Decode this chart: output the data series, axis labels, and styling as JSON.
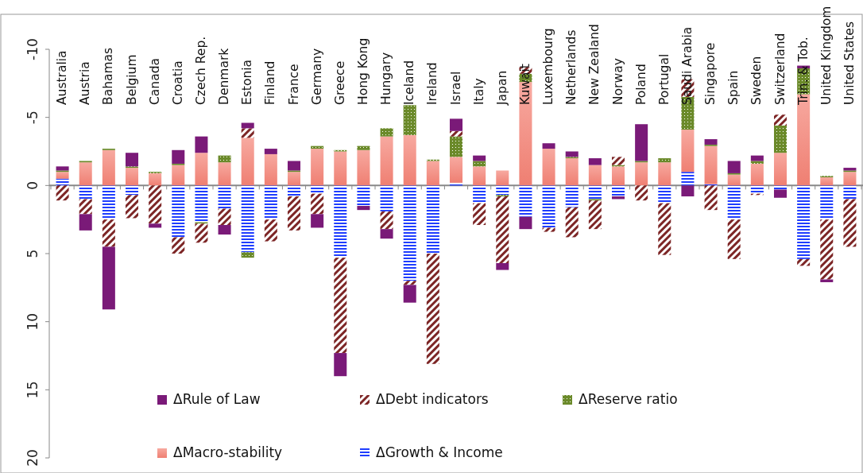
{
  "chart_data": {
    "type": "bar",
    "stacked": true,
    "categories": [
      "Australia",
      "Austria",
      "Bahamas",
      "Belgium",
      "Canada",
      "Croatia",
      "Czech Rep.",
      "Denmark",
      "Estonia",
      "Finland",
      "France",
      "Germany",
      "Greece",
      "Hong Kong",
      "Hungary",
      "Iceland",
      "Ireland",
      "Israel",
      "Italy",
      "Japan",
      "Kuwait",
      "Luxembourg",
      "Netherlands",
      "New Zealand",
      "Norway",
      "Poland",
      "Portugal",
      "Saudi Arabia",
      "Singapore",
      "Spain",
      "Sweden",
      "Switzerland",
      "Trin. & Tob.",
      "United Kingdom",
      "United States"
    ],
    "series": [
      {
        "name": "ΔGrowth & Income",
        "color": "#1f3dff",
        "values": [
          -0.5,
          1.0,
          2.5,
          0.7,
          0,
          3.8,
          2.7,
          1.7,
          4.9,
          2.5,
          0.8,
          0.6,
          5.3,
          1.5,
          1.9,
          7.0,
          5.0,
          -0.2,
          1.3,
          0.7,
          2.3,
          3.1,
          1.6,
          1.0,
          0.8,
          0,
          1.3,
          -1.0,
          -0.1,
          2.5,
          0.6,
          0.3,
          5.4,
          2.5,
          1.0
        ]
      },
      {
        "name": "ΔMacro-stability",
        "color": "#ef7f72",
        "values": [
          -0.5,
          -1.7,
          -2.6,
          -1.3,
          -0.9,
          -1.5,
          -2.4,
          -1.7,
          -3.5,
          -2.3,
          -1.0,
          -2.7,
          -2.5,
          -2.6,
          -3.6,
          -3.7,
          -1.8,
          -1.9,
          -1.4,
          -1.1,
          -7.6,
          -2.7,
          -2.0,
          -1.5,
          -1.4,
          -1.7,
          -1.7,
          -3.1,
          -2.8,
          -0.8,
          -1.6,
          -2.4,
          -6.7,
          -0.6,
          -1.0
        ]
      },
      {
        "name": "ΔReserve ratio",
        "color": "#6b8a2a",
        "values": [
          -0.1,
          -0.1,
          -0.1,
          -0.1,
          -0.1,
          -0.1,
          0.1,
          -0.5,
          0.4,
          0,
          -0.1,
          -0.2,
          -0.1,
          -0.3,
          -0.6,
          -2.2,
          -0.1,
          -1.5,
          -0.4,
          0.1,
          -0.6,
          0,
          -0.1,
          0.1,
          -0.1,
          -0.1,
          -0.3,
          -2.4,
          -0.1,
          -0.1,
          -0.2,
          -2.0,
          -1.9,
          -0.1,
          -0.1
        ]
      },
      {
        "name": "ΔDebt indicators",
        "color": "#7d2626",
        "values": [
          1.1,
          1.1,
          2.0,
          1.7,
          2.8,
          1.2,
          1.4,
          1.2,
          -0.7,
          1.6,
          2.5,
          1.5,
          7.0,
          0,
          1.3,
          0.3,
          8.1,
          -0.4,
          1.6,
          4.9,
          -0.5,
          0.3,
          2.2,
          2.1,
          -0.6,
          1.1,
          3.8,
          -1.3,
          1.8,
          2.9,
          0.1,
          -0.8,
          0.5,
          4.4,
          3.5
        ]
      },
      {
        "name": "ΔRule of Law",
        "color": "#7a1a78",
        "values": [
          -0.3,
          1.2,
          4.6,
          -1.0,
          0.3,
          -1.0,
          -1.2,
          0.7,
          -0.4,
          -0.4,
          -0.7,
          1.0,
          1.7,
          0.3,
          0.7,
          1.3,
          0,
          -0.9,
          -0.4,
          0.5,
          0.9,
          -0.4,
          -0.4,
          -0.5,
          0.2,
          -2.7,
          0,
          0.8,
          -0.4,
          -0.9,
          -0.4,
          0.6,
          -0.2,
          0.2,
          -0.2
        ]
      }
    ],
    "ylim": [
      20,
      -10
    ],
    "yticks": [
      -10,
      -5,
      0,
      5,
      10,
      15,
      20
    ],
    "legend": "bottom"
  }
}
